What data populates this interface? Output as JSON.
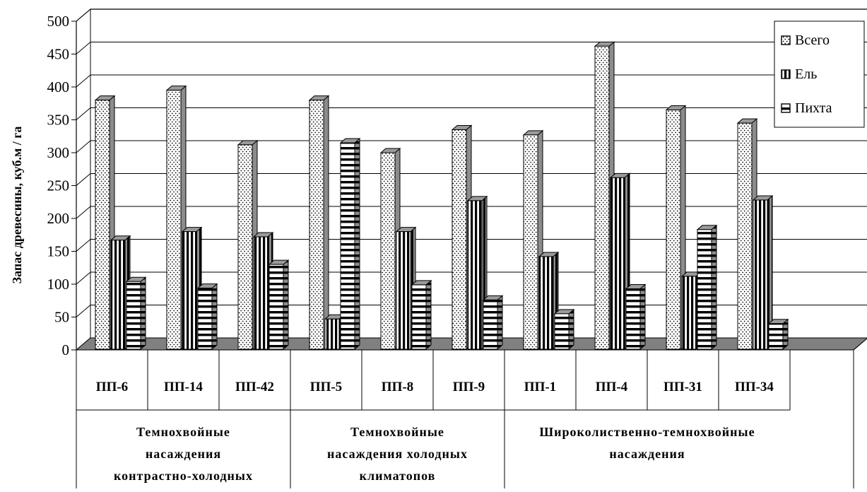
{
  "chart_data": {
    "type": "bar",
    "categories": [
      "ПП-6",
      "ПП-14",
      "ПП-42",
      "ПП-5",
      "ПП-8",
      "ПП-9",
      "ПП-1",
      "ПП-4",
      "ПП-31",
      "ПП-34"
    ],
    "groups": [
      {
        "lines": [
          "Темнохвойные",
          "насаждения",
          "контрастно-холодных"
        ]
      },
      {
        "lines": [
          "Темнохвойные",
          "насаждения холодных",
          "климатопов"
        ]
      },
      {
        "lines": [
          "Широколиственно-темнохвойные",
          "насаждения"
        ]
      }
    ],
    "series": [
      {
        "name": "Всего",
        "pattern": "dots",
        "values": [
          380,
          395,
          312,
          380,
          300,
          335,
          327,
          462,
          365,
          345
        ]
      },
      {
        "name": "Ель",
        "pattern": "vertical",
        "values": [
          167,
          180,
          172,
          47,
          180,
          227,
          142,
          262,
          112,
          228
        ]
      },
      {
        "name": "Пихта",
        "pattern": "horizontal",
        "values": [
          104,
          94,
          130,
          315,
          99,
          76,
          55,
          93,
          183,
          40
        ]
      }
    ],
    "title": "",
    "xlabel": "",
    "ylabel": "Запас древесины, куб.м / га",
    "ylim": [
      0,
      500
    ],
    "yticks": [
      0,
      50,
      100,
      150,
      200,
      250,
      300,
      350,
      400,
      450,
      500
    ],
    "grid": true,
    "legend_position": "top-right",
    "colors": {
      "top": "#9a9a9a",
      "side": "#8c8c8c",
      "floor": "#808080",
      "bar": "#ffffff",
      "ink": "#000000"
    }
  }
}
